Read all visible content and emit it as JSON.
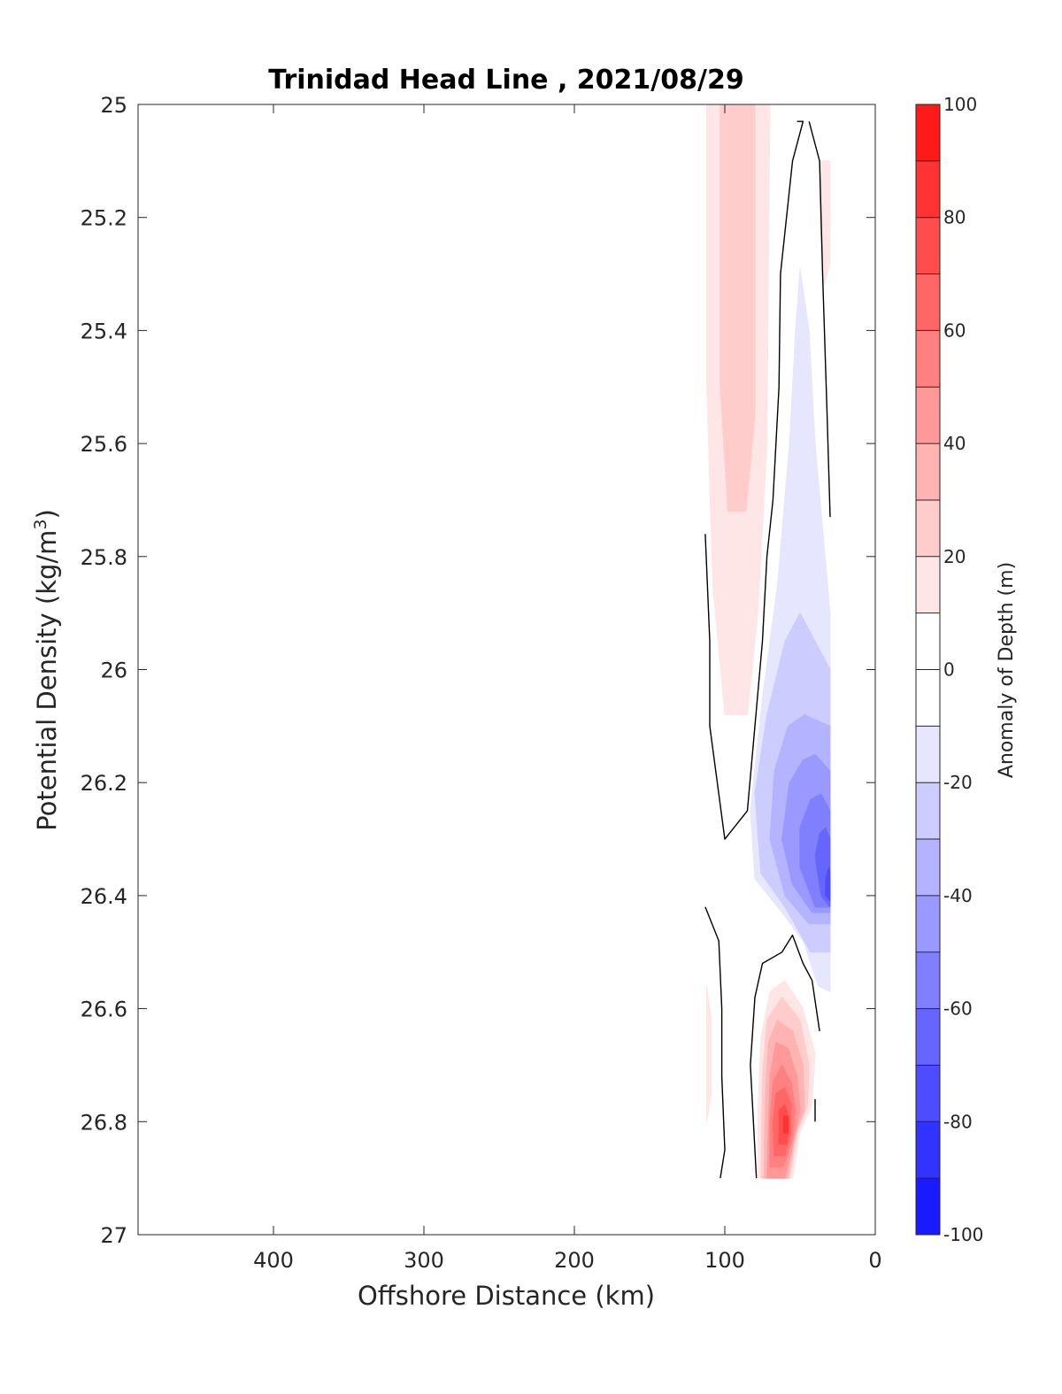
{
  "chart_data": {
    "type": "heatmap",
    "subtype": "filled-contour",
    "title": "Trinidad Head Line , 2021/08/29",
    "xlabel": "Offshore Distance (km)",
    "ylabel_main": "Potential Density (kg/m",
    "ylabel_sup": "3",
    "ylabel_close": ")",
    "xlim": [
      490,
      0
    ],
    "x_reversed": true,
    "xticks": [
      400,
      300,
      200,
      100,
      0
    ],
    "ylim": [
      25,
      27
    ],
    "y_reversed": true,
    "yticks": [
      "25",
      "25.2",
      "25.4",
      "25.6",
      "25.8",
      "26",
      "26.2",
      "26.4",
      "26.6",
      "26.8",
      "27"
    ],
    "grid": false,
    "colorbar": {
      "label": "Anomaly of Depth (m)",
      "range": [
        -100,
        100
      ],
      "ticks": [
        "100",
        "80",
        "60",
        "40",
        "20",
        "0",
        "-20",
        "-40",
        "-60",
        "-80",
        "-100"
      ],
      "levels": [
        -100,
        -90,
        -80,
        -70,
        -60,
        -50,
        -40,
        -30,
        -20,
        -10,
        0,
        10,
        20,
        30,
        40,
        50,
        60,
        70,
        80,
        90,
        100
      ],
      "colors_low_to_high": [
        "#0000ff",
        "#1a1aff",
        "#3333ff",
        "#4d4dff",
        "#6666ff",
        "#8080ff",
        "#9999ff",
        "#b3b3ff",
        "#ccccff",
        "#e6e6ff",
        "#ffffff",
        "#ffffff",
        "#ffe6e6",
        "#ffcccc",
        "#ffb3b3",
        "#ff9999",
        "#ff8080",
        "#ff6666",
        "#ff4d4d",
        "#ff3333",
        "#ff1a1a",
        "#ff0000"
      ]
    },
    "regions": [
      {
        "name": "positive-anomaly-upper",
        "level": 10,
        "fill": "#ffe6e6",
        "points": [
          [
            112,
            25.0
          ],
          [
            70,
            25.0
          ],
          [
            72,
            25.6
          ],
          [
            78,
            25.9
          ],
          [
            85,
            26.08
          ],
          [
            100,
            26.08
          ],
          [
            108,
            25.85
          ],
          [
            112,
            25.5
          ]
        ]
      },
      {
        "name": "positive-anomaly-upper-core",
        "level": 20,
        "fill": "#ffcccc",
        "points": [
          [
            103,
            25.0
          ],
          [
            80,
            25.0
          ],
          [
            80,
            25.55
          ],
          [
            86,
            25.72
          ],
          [
            98,
            25.72
          ],
          [
            103,
            25.5
          ]
        ]
      },
      {
        "name": "positive-anomaly-nearshore-sliver",
        "level": 10,
        "fill": "#ffe6e6",
        "points": [
          [
            37,
            25.1
          ],
          [
            30,
            25.1
          ],
          [
            30,
            25.28
          ],
          [
            34,
            25.32
          ],
          [
            37,
            25.2
          ]
        ]
      },
      {
        "name": "negative-anomaly-outer",
        "level": -10,
        "fill": "#e6e6ff",
        "points": [
          [
            50,
            25.29
          ],
          [
            44,
            25.4
          ],
          [
            40,
            25.6
          ],
          [
            30,
            25.9
          ],
          [
            30,
            26.57
          ],
          [
            38,
            26.56
          ],
          [
            48,
            26.48
          ],
          [
            62,
            26.43
          ],
          [
            80,
            26.37
          ],
          [
            83,
            26.25
          ],
          [
            75,
            26.05
          ],
          [
            65,
            25.85
          ],
          [
            57,
            25.6
          ],
          [
            53,
            25.4
          ]
        ]
      },
      {
        "name": "negative-anomaly-level-20",
        "level": -20,
        "fill": "#ccccff",
        "points": [
          [
            50,
            25.9
          ],
          [
            30,
            26.0
          ],
          [
            30,
            26.5
          ],
          [
            43,
            26.5
          ],
          [
            60,
            26.42
          ],
          [
            76,
            26.36
          ],
          [
            80,
            26.22
          ],
          [
            72,
            26.08
          ],
          [
            60,
            25.95
          ]
        ]
      },
      {
        "name": "negative-anomaly-level-30",
        "level": -30,
        "fill": "#b3b3ff",
        "points": [
          [
            47,
            26.08
          ],
          [
            30,
            26.1
          ],
          [
            30,
            26.45
          ],
          [
            44,
            26.45
          ],
          [
            60,
            26.4
          ],
          [
            70,
            26.3
          ],
          [
            67,
            26.18
          ],
          [
            58,
            26.1
          ]
        ]
      },
      {
        "name": "negative-anomaly-level-40",
        "level": -40,
        "fill": "#9999ff",
        "points": [
          [
            40,
            26.15
          ],
          [
            30,
            26.18
          ],
          [
            30,
            26.43
          ],
          [
            42,
            26.43
          ],
          [
            55,
            26.38
          ],
          [
            62,
            26.3
          ],
          [
            57,
            26.2
          ],
          [
            48,
            26.16
          ]
        ]
      },
      {
        "name": "negative-anomaly-level-50",
        "level": -50,
        "fill": "#8080ff",
        "points": [
          [
            36,
            26.22
          ],
          [
            30,
            26.25
          ],
          [
            30,
            26.42
          ],
          [
            40,
            26.42
          ],
          [
            50,
            26.35
          ],
          [
            50,
            26.28
          ],
          [
            43,
            26.23
          ]
        ]
      },
      {
        "name": "negative-anomaly-level-60",
        "level": -60,
        "fill": "#6666ff",
        "points": [
          [
            33,
            26.28
          ],
          [
            30,
            26.3
          ],
          [
            30,
            26.42
          ],
          [
            36,
            26.4
          ],
          [
            40,
            26.33
          ],
          [
            37,
            26.29
          ]
        ]
      },
      {
        "name": "negative-anomaly-level-70",
        "level": -70,
        "fill": "#4d4dff",
        "points": [
          [
            31,
            26.35
          ],
          [
            30,
            26.36
          ],
          [
            30,
            26.41
          ],
          [
            33,
            26.4
          ],
          [
            33,
            26.37
          ]
        ]
      },
      {
        "name": "positive-anomaly-lower-10",
        "level": 10,
        "fill": "#ffe6e6",
        "points": [
          [
            78,
            26.9
          ],
          [
            55,
            26.9
          ],
          [
            50,
            26.82
          ],
          [
            42,
            26.77
          ],
          [
            40,
            26.68
          ],
          [
            48,
            26.6
          ],
          [
            60,
            26.55
          ],
          [
            70,
            26.57
          ],
          [
            76,
            26.65
          ],
          [
            78,
            26.78
          ]
        ]
      },
      {
        "name": "positive-anomaly-lower-20",
        "level": 20,
        "fill": "#ffcccc",
        "points": [
          [
            76,
            26.9
          ],
          [
            57,
            26.9
          ],
          [
            52,
            26.82
          ],
          [
            45,
            26.77
          ],
          [
            44,
            26.7
          ],
          [
            50,
            26.62
          ],
          [
            62,
            26.58
          ],
          [
            72,
            26.62
          ],
          [
            75,
            26.72
          ]
        ]
      },
      {
        "name": "positive-anomaly-lower-30",
        "level": 30,
        "fill": "#ffb3b3",
        "points": [
          [
            74,
            26.9
          ],
          [
            58,
            26.9
          ],
          [
            53,
            26.82
          ],
          [
            47,
            26.78
          ],
          [
            48,
            26.7
          ],
          [
            55,
            26.64
          ],
          [
            65,
            26.62
          ],
          [
            71,
            26.66
          ],
          [
            73,
            26.75
          ]
        ]
      },
      {
        "name": "positive-anomaly-lower-40",
        "level": 40,
        "fill": "#ff9999",
        "points": [
          [
            72,
            26.9
          ],
          [
            60,
            26.9
          ],
          [
            54,
            26.83
          ],
          [
            50,
            26.78
          ],
          [
            52,
            26.72
          ],
          [
            58,
            26.67
          ],
          [
            66,
            26.66
          ],
          [
            70,
            26.72
          ]
        ]
      },
      {
        "name": "positive-anomaly-lower-50",
        "level": 50,
        "fill": "#ff8080",
        "points": [
          [
            70,
            26.88
          ],
          [
            61,
            26.88
          ],
          [
            55,
            26.83
          ],
          [
            53,
            26.78
          ],
          [
            56,
            26.73
          ],
          [
            62,
            26.7
          ],
          [
            68,
            26.73
          ],
          [
            70,
            26.8
          ]
        ]
      },
      {
        "name": "positive-anomaly-lower-60",
        "level": 60,
        "fill": "#ff6666",
        "points": [
          [
            67,
            26.86
          ],
          [
            60,
            26.86
          ],
          [
            56,
            26.82
          ],
          [
            56,
            26.77
          ],
          [
            60,
            26.74
          ],
          [
            66,
            26.75
          ],
          [
            68,
            26.8
          ]
        ]
      },
      {
        "name": "positive-anomaly-lower-70",
        "level": 70,
        "fill": "#ff4d4d",
        "points": [
          [
            64,
            26.84
          ],
          [
            59,
            26.84
          ],
          [
            57,
            26.8
          ],
          [
            60,
            26.77
          ],
          [
            64,
            26.78
          ]
        ]
      },
      {
        "name": "positive-anomaly-lower-80",
        "level": 80,
        "fill": "#ff3333",
        "points": [
          [
            61,
            26.82
          ],
          [
            58,
            26.82
          ],
          [
            58,
            26.79
          ],
          [
            61,
            26.79
          ]
        ]
      },
      {
        "name": "positive-anomaly-offshore-sliver",
        "level": 10,
        "fill": "#ffe6e6",
        "points": [
          [
            112,
            26.56
          ],
          [
            109,
            26.62
          ],
          [
            109,
            26.75
          ],
          [
            112,
            26.8
          ]
        ]
      }
    ],
    "contours_zero": [
      [
        [
          44,
          25.03
        ],
        [
          37,
          25.1
        ],
        [
          35,
          25.3
        ],
        [
          32,
          25.55
        ],
        [
          30,
          25.73
        ]
      ],
      [
        [
          52,
          25.03
        ],
        [
          48,
          25.03
        ],
        [
          55,
          25.1
        ],
        [
          63,
          25.3
        ],
        [
          64,
          25.5
        ],
        [
          68,
          25.7
        ],
        [
          72,
          25.8
        ],
        [
          75,
          25.95
        ],
        [
          80,
          26.1
        ],
        [
          85,
          26.25
        ],
        [
          100,
          26.3
        ],
        [
          110,
          26.1
        ],
        [
          110,
          25.95
        ],
        [
          113,
          25.76
        ]
      ],
      [
        [
          113,
          26.42
        ],
        [
          104,
          26.48
        ],
        [
          102,
          26.6
        ],
        [
          102,
          26.72
        ],
        [
          100,
          26.85
        ],
        [
          103,
          26.9
        ]
      ],
      [
        [
          37,
          26.64
        ],
        [
          42,
          26.55
        ],
        [
          48,
          26.52
        ],
        [
          55,
          26.47
        ],
        [
          62,
          26.5
        ],
        [
          75,
          26.52
        ],
        [
          80,
          26.58
        ],
        [
          83,
          26.7
        ],
        [
          80,
          26.85
        ],
        [
          79,
          26.9
        ]
      ],
      [
        [
          40,
          26.76
        ],
        [
          40,
          26.8
        ]
      ]
    ]
  }
}
